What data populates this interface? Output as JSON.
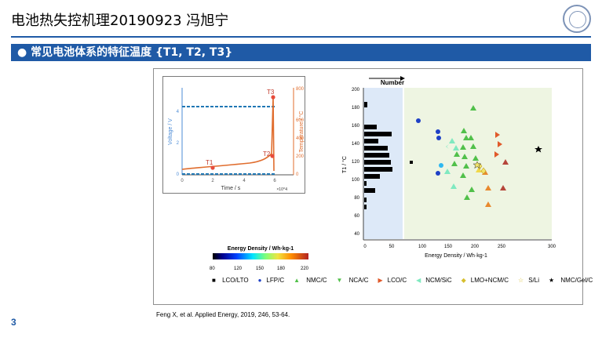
{
  "header": {
    "title": "电池热失控机理20190923 冯旭宁",
    "section_title": "常见电池体系的特征温度 {T1, T2, T3}"
  },
  "figure": {
    "inset": {
      "left_axis_label": "Voltage / V",
      "right_axis_label": "Temperature / °C",
      "x_axis_label": "Time / s",
      "x_scale_label": "×10^4",
      "x_ticks": [
        "0",
        "2",
        "4",
        "6"
      ],
      "voltage_ticks": [
        "0",
        "2",
        "4"
      ],
      "temperature_ticks": [
        "0",
        "200",
        "400",
        "600",
        "800"
      ],
      "T1_label": "T1",
      "T2_label": "T2",
      "T3_label": "T3"
    },
    "histogram": {
      "title": "Number",
      "x_ticks": [
        "0",
        "50"
      ],
      "y_ticks": [
        "40",
        "60",
        "80",
        "100",
        "120",
        "140",
        "160",
        "180",
        "200"
      ]
    },
    "scatter": {
      "x_label": "Energy Density / Wh·kg-1",
      "y_label": "T1 / °C",
      "x_ticks": [
        "100",
        "150",
        "200",
        "250",
        "300"
      ]
    },
    "colorbar": {
      "title": "Energy Density / Wh·kg-1",
      "ticks": [
        "80",
        "120",
        "150",
        "180",
        "220"
      ]
    },
    "legend": [
      {
        "label": "LCO/LTO"
      },
      {
        "label": "LFP/C"
      },
      {
        "label": "NMC/C"
      },
      {
        "label": "NCA/C"
      },
      {
        "label": "LCO/C"
      },
      {
        "label": "NCM/SiC"
      },
      {
        "label": "LMO+NCM/C"
      },
      {
        "label": "S/Li"
      },
      {
        "label": "NMC/Gel/C"
      }
    ]
  },
  "footer": {
    "citation": "Feng X, et al. Applied Energy, 2019, 246, 53-64.",
    "page_number": "3"
  }
}
